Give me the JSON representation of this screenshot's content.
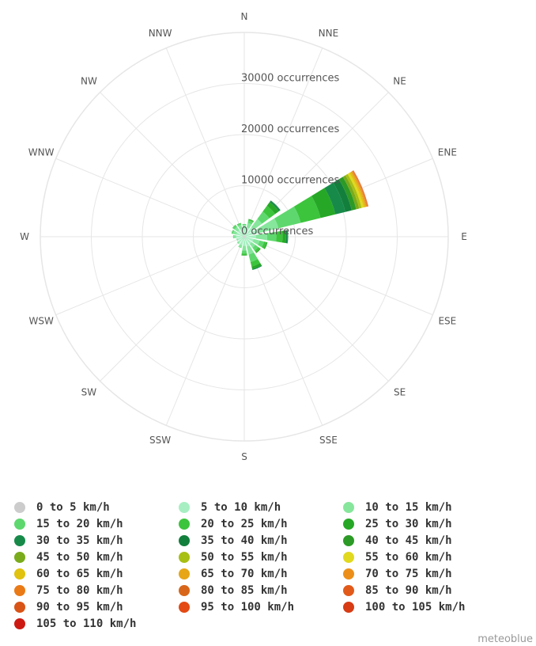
{
  "chart_data": {
    "type": "windrose",
    "directions": [
      "N",
      "NNE",
      "NE",
      "ENE",
      "E",
      "ESE",
      "SE",
      "SSE",
      "S",
      "SSW",
      "SW",
      "WSW",
      "W",
      "WNW",
      "NW",
      "NNW"
    ],
    "radial_axis": {
      "unit": "occurrences",
      "max": 40000,
      "tick_values": [
        0,
        10000,
        20000,
        30000
      ],
      "tick_labels": [
        "0 occurrences",
        "10000 occurrences",
        "20000 occurrences",
        "30000 occurrences"
      ]
    },
    "series": [
      {
        "name": "0 to 5 km/h",
        "color": "#cccccc",
        "values": [
          300,
          300,
          300,
          300,
          300,
          300,
          300,
          300,
          300,
          300,
          300,
          300,
          300,
          300,
          300,
          300
        ]
      },
      {
        "name": "5 to 10 km/h",
        "color": "#a7efc2",
        "values": [
          1400,
          1600,
          2000,
          2600,
          2000,
          1600,
          1500,
          1700,
          1500,
          1400,
          1200,
          1100,
          1300,
          1300,
          1300,
          1400
        ]
      },
      {
        "name": "10 to 15 km/h",
        "color": "#86e69c",
        "values": [
          600,
          900,
          2000,
          4000,
          2200,
          1200,
          900,
          1600,
          900,
          500,
          300,
          200,
          500,
          700,
          800,
          700
        ]
      },
      {
        "name": "15 to 20 km/h",
        "color": "#5ed86e",
        "values": [
          200,
          500,
          1800,
          4500,
          1800,
          900,
          700,
          1500,
          600,
          100,
          0,
          0,
          100,
          300,
          400,
          300
        ]
      },
      {
        "name": "20 to 25 km/h",
        "color": "#3cc43c",
        "values": [
          0,
          200,
          1400,
          4000,
          1200,
          500,
          400,
          900,
          300,
          0,
          0,
          0,
          0,
          0,
          100,
          100
        ]
      },
      {
        "name": "25 to 30 km/h",
        "color": "#26a826",
        "values": [
          0,
          100,
          900,
          3000,
          700,
          200,
          200,
          500,
          100,
          0,
          0,
          0,
          0,
          0,
          0,
          0
        ]
      },
      {
        "name": "30 to 35 km/h",
        "color": "#178a4a",
        "values": [
          0,
          0,
          300,
          2000,
          300,
          0,
          0,
          200,
          0,
          0,
          0,
          0,
          0,
          0,
          0,
          0
        ]
      },
      {
        "name": "35 to 40 km/h",
        "color": "#137f3c",
        "values": [
          0,
          0,
          100,
          1300,
          100,
          0,
          0,
          0,
          0,
          0,
          0,
          0,
          0,
          0,
          0,
          0
        ]
      },
      {
        "name": "40 to 45 km/h",
        "color": "#2c9a26",
        "values": [
          0,
          0,
          0,
          900,
          0,
          0,
          0,
          0,
          0,
          0,
          0,
          0,
          0,
          0,
          0,
          0
        ]
      },
      {
        "name": "45 to 50 km/h",
        "color": "#7aab1c",
        "values": [
          0,
          0,
          0,
          600,
          0,
          0,
          0,
          0,
          0,
          0,
          0,
          0,
          0,
          0,
          0,
          0
        ]
      },
      {
        "name": "50 to 55 km/h",
        "color": "#a8bf14",
        "values": [
          0,
          0,
          0,
          500,
          0,
          0,
          0,
          0,
          0,
          0,
          0,
          0,
          0,
          0,
          0,
          0
        ]
      },
      {
        "name": "55 to 60 km/h",
        "color": "#e1d91e",
        "values": [
          0,
          0,
          0,
          400,
          0,
          0,
          0,
          0,
          0,
          0,
          0,
          0,
          0,
          0,
          0,
          0
        ]
      },
      {
        "name": "60 to 65 km/h",
        "color": "#e0c20f",
        "values": [
          0,
          0,
          0,
          300,
          0,
          0,
          0,
          0,
          0,
          0,
          0,
          0,
          0,
          0,
          0,
          0
        ]
      },
      {
        "name": "65 to 70 km/h",
        "color": "#e6a617",
        "values": [
          0,
          0,
          0,
          200,
          0,
          0,
          0,
          0,
          0,
          0,
          0,
          0,
          0,
          0,
          0,
          0
        ]
      },
      {
        "name": "70 to 75 km/h",
        "color": "#ec8f1a",
        "values": [
          0,
          0,
          0,
          150,
          0,
          0,
          0,
          0,
          0,
          0,
          0,
          0,
          0,
          0,
          0,
          0
        ]
      },
      {
        "name": "75 to 80 km/h",
        "color": "#ea7a16",
        "values": [
          0,
          0,
          0,
          100,
          0,
          0,
          0,
          0,
          0,
          0,
          0,
          0,
          0,
          0,
          0,
          0
        ]
      },
      {
        "name": "80 to 85 km/h",
        "color": "#d8661a",
        "values": [
          0,
          0,
          0,
          80,
          0,
          0,
          0,
          0,
          0,
          0,
          0,
          0,
          0,
          0,
          0,
          0
        ]
      },
      {
        "name": "85 to 90 km/h",
        "color": "#e25a1a",
        "values": [
          0,
          0,
          0,
          60,
          0,
          0,
          0,
          0,
          0,
          0,
          0,
          0,
          0,
          0,
          0,
          0
        ]
      },
      {
        "name": "90 to 95 km/h",
        "color": "#d95417",
        "values": [
          0,
          0,
          0,
          40,
          0,
          0,
          0,
          0,
          0,
          0,
          0,
          0,
          0,
          0,
          0,
          0
        ]
      },
      {
        "name": "95 to 100 km/h",
        "color": "#e44a14",
        "values": [
          0,
          0,
          0,
          20,
          0,
          0,
          0,
          0,
          0,
          0,
          0,
          0,
          0,
          0,
          0,
          0
        ]
      },
      {
        "name": "100 to 105 km/h",
        "color": "#d73c14",
        "values": [
          0,
          0,
          0,
          10,
          0,
          0,
          0,
          0,
          0,
          0,
          0,
          0,
          0,
          0,
          0,
          0
        ]
      },
      {
        "name": "105 to 110 km/h",
        "color": "#cc1a12",
        "values": [
          0,
          0,
          0,
          0,
          0,
          0,
          0,
          0,
          0,
          0,
          0,
          0,
          0,
          0,
          0,
          0
        ]
      }
    ],
    "grid": true,
    "legend_position": "bottom"
  },
  "credit": "meteoblue"
}
